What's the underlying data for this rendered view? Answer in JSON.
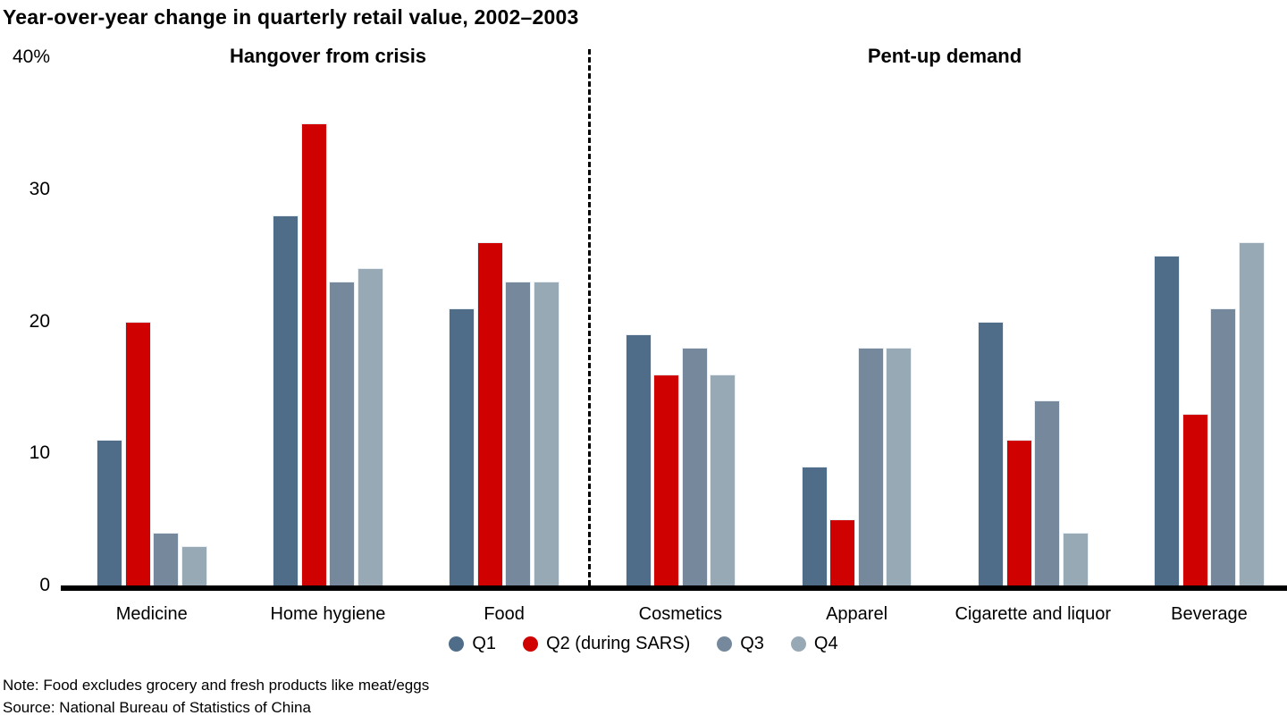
{
  "title": "Year-over-year change in quarterly retail value, 2002–2003",
  "sections": [
    {
      "label": "Hangover from crisis"
    },
    {
      "label": "Pent-up demand"
    }
  ],
  "legend": [
    {
      "name": "Q1",
      "color": "#4f6d88"
    },
    {
      "name": "Q2 (during SARS)",
      "color": "#cf0101"
    },
    {
      "name": "Q3",
      "color": "#75889c"
    },
    {
      "name": "Q4",
      "color": "#98a9b6"
    }
  ],
  "notes": [
    "Note: Food excludes grocery and fresh products like meat/eggs",
    "Source: National Bureau of Statistics of China"
  ],
  "chart_data": {
    "type": "bar",
    "title": "Year-over-year change in quarterly retail value, 2002–2003",
    "unit": "%",
    "ylim": [
      0,
      40
    ],
    "grid": false,
    "legend_position": "bottom",
    "yticks": [
      {
        "label": "40%",
        "value": 40
      },
      {
        "label": "30",
        "value": 30
      },
      {
        "label": "20",
        "value": 20
      },
      {
        "label": "10",
        "value": 10
      },
      {
        "label": "0",
        "value": 0
      }
    ],
    "categories": [
      "Medicine",
      "Home hygiene",
      "Food",
      "Cosmetics",
      "Apparel",
      "Cigarette and liquor",
      "Beverage"
    ],
    "category_sections": [
      "Hangover from crisis",
      "Hangover from crisis",
      "Hangover from crisis",
      "Pent-up demand",
      "Pent-up demand",
      "Pent-up demand",
      "Pent-up demand"
    ],
    "series": [
      {
        "name": "Q1",
        "color": "#4f6d88",
        "values": [
          11,
          28,
          21,
          19,
          9,
          20,
          25
        ]
      },
      {
        "name": "Q2 (during SARS)",
        "color": "#cf0101",
        "values": [
          20,
          35,
          26,
          16,
          5,
          11,
          13
        ]
      },
      {
        "name": "Q3",
        "color": "#75889c",
        "values": [
          4,
          23,
          23,
          18,
          18,
          14,
          21
        ]
      },
      {
        "name": "Q4",
        "color": "#98a9b6",
        "values": [
          3,
          24,
          23,
          16,
          18,
          4,
          26
        ]
      }
    ]
  }
}
